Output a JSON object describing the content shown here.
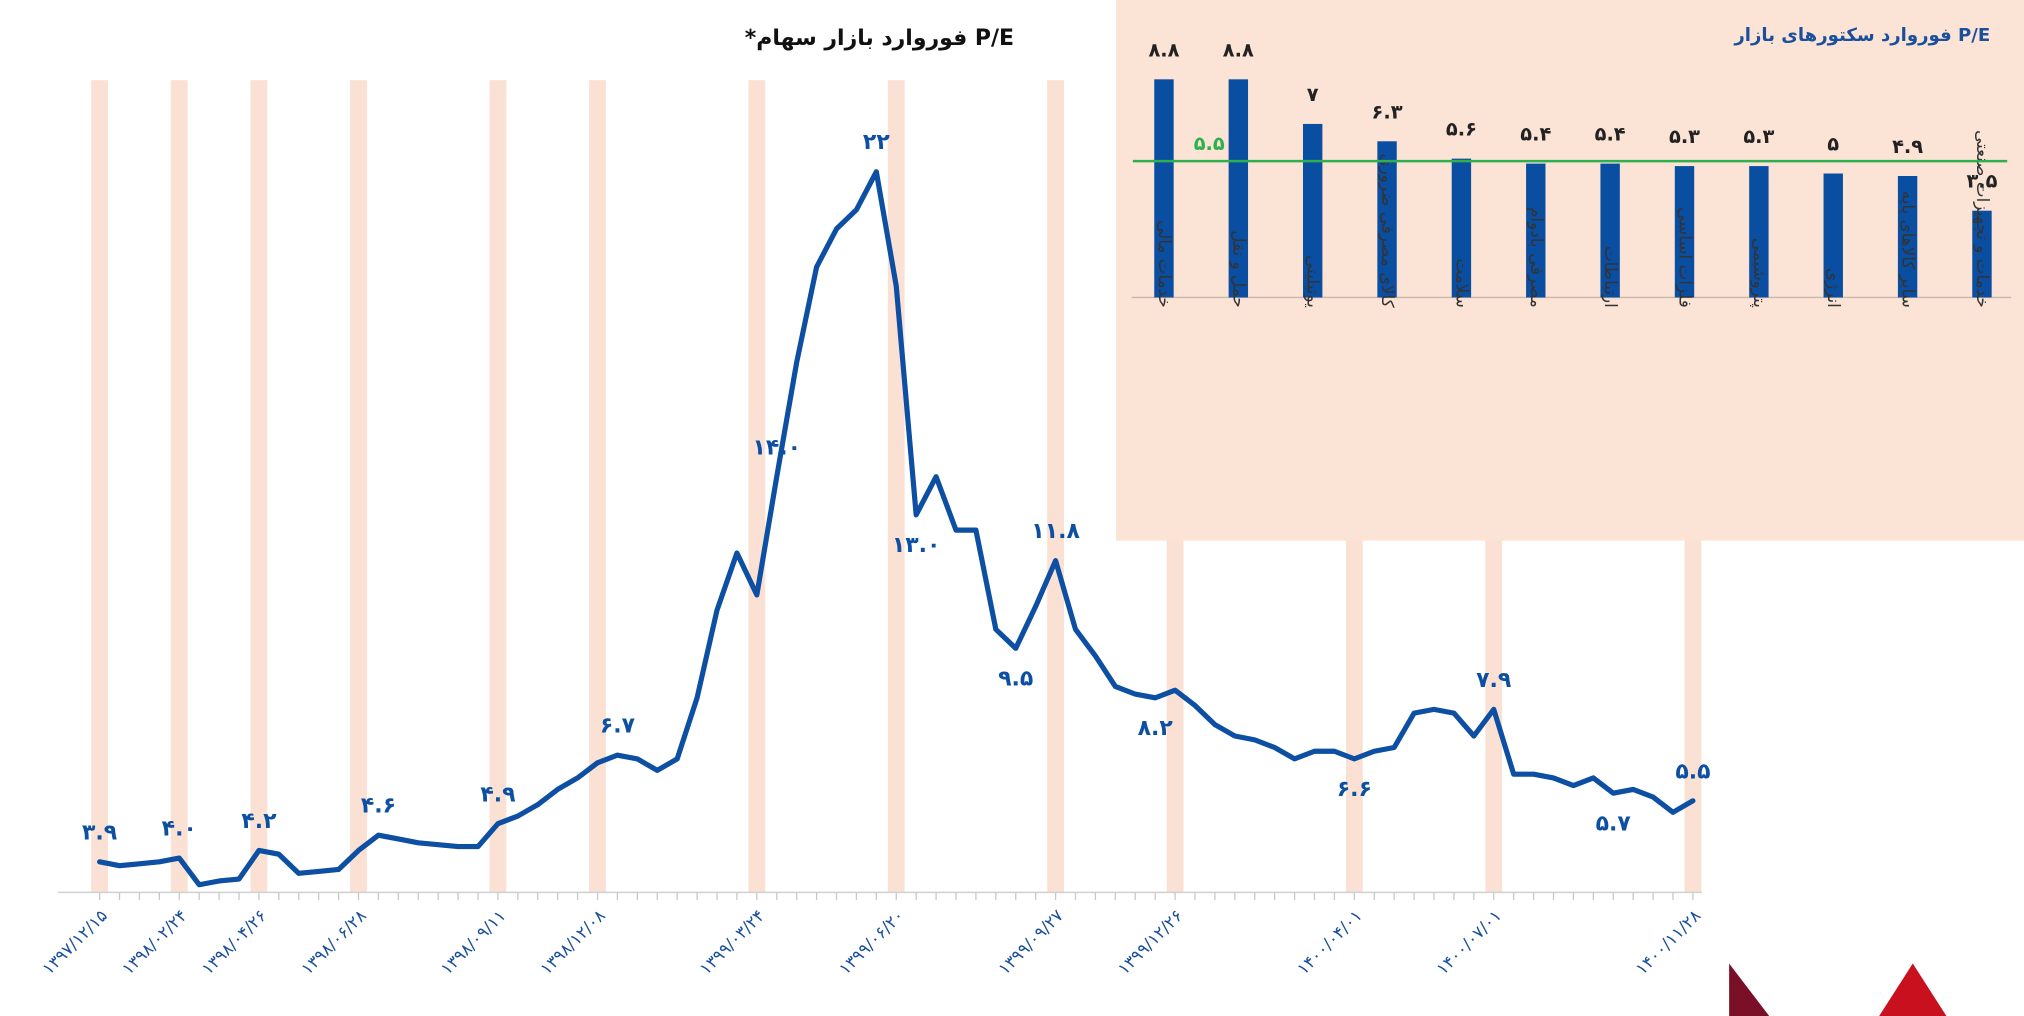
{
  "chart_data": [
    {
      "type": "line",
      "title": "P/E فوروارد بازار سهام*",
      "categories": [
        "۱۳۹۷/۱۲/۱۵",
        null,
        null,
        null,
        "۱۳۹۸/۰۲/۲۴",
        null,
        null,
        null,
        "۱۳۹۸/۰۴/۲۶",
        null,
        null,
        null,
        null,
        "۱۳۹۸/۰۶/۲۸",
        null,
        null,
        null,
        null,
        null,
        null,
        "۱۳۹۸/۰۹/۱۱",
        null,
        null,
        null,
        null,
        "۱۳۹۸/۱۲/۰۸",
        null,
        null,
        null,
        null,
        null,
        null,
        null,
        "۱۳۹۹/۰۳/۲۴",
        null,
        null,
        null,
        null,
        null,
        null,
        "۱۳۹۹/۰۶/۲۰",
        null,
        null,
        null,
        null,
        null,
        null,
        null,
        "۱۳۹۹/۰۹/۲۷",
        null,
        null,
        null,
        null,
        null,
        "۱۳۹۹/۱۲/۲۶",
        null,
        null,
        null,
        null,
        null,
        null,
        null,
        null,
        "۱۴۰۰/۰۴/۰۱",
        null,
        null,
        null,
        null,
        null,
        null,
        "۱۴۰۰/۰۷/۰۱",
        null,
        null,
        null,
        null,
        null,
        null,
        null,
        null,
        null,
        "۱۴۰۰/۱۱/۲۸"
      ],
      "series": [
        {
          "color": "#0d4fa3",
          "values": [
            3.9,
            3.8,
            3.85,
            3.9,
            4.0,
            3.3,
            3.4,
            3.45,
            4.2,
            4.1,
            3.6,
            3.65,
            3.7,
            4.2,
            4.6,
            4.5,
            4.4,
            4.35,
            4.3,
            4.3,
            4.9,
            5.1,
            5.4,
            5.8,
            6.1,
            6.5,
            6.7,
            6.6,
            6.3,
            6.6,
            8.2,
            10.5,
            12.0,
            10.9,
            14.0,
            17.0,
            19.5,
            20.5,
            21.0,
            22,
            19.0,
            13.0,
            14.0,
            12.6,
            12.6,
            10.0,
            9.5,
            10.6,
            11.8,
            10.0,
            9.3,
            8.5,
            8.3,
            8.2,
            8.4,
            8.0,
            7.5,
            7.2,
            7.1,
            6.9,
            6.6,
            6.8,
            6.8,
            6.6,
            6.8,
            6.9,
            7.8,
            7.9,
            7.8,
            7.2,
            7.9,
            6.2,
            6.2,
            6.1,
            5.9,
            6.1,
            5.7,
            5.8,
            5.6,
            5.2,
            5.5
          ],
          "value_labels": [
            "۳.۹",
            null,
            null,
            null,
            "۴.۰",
            null,
            null,
            null,
            "۴.۲",
            null,
            null,
            null,
            null,
            null,
            "۴.۶",
            null,
            null,
            null,
            null,
            null,
            "۴.۹",
            null,
            null,
            null,
            null,
            null,
            "۶.۷",
            null,
            null,
            null,
            null,
            null,
            null,
            null,
            "۱۴.۰",
            null,
            null,
            null,
            null,
            "۲۲",
            null,
            "۱۳.۰",
            null,
            null,
            null,
            null,
            "۹.۵",
            null,
            "۱۱.۸",
            null,
            null,
            null,
            null,
            "۸.۲",
            null,
            null,
            null,
            null,
            null,
            null,
            null,
            null,
            null,
            "۶.۶",
            null,
            null,
            null,
            null,
            null,
            null,
            "۷.۹",
            null,
            null,
            null,
            null,
            null,
            "۵.۷",
            null,
            null,
            null,
            "۵.۵"
          ]
        }
      ],
      "ylim": [
        3.1,
        24.4
      ]
    },
    {
      "type": "bar",
      "title": "P/E فوروارد سکتورهای بازار",
      "categories": [
        "خدمات مالی",
        "حمل و نقل",
        "یوتیلیتی",
        "کالای مصرفی ضروری",
        "سلامت",
        "مصرفی بادوام",
        "ارتباطات",
        "فلزات اساسی",
        "پتروشیمی",
        "انرژی",
        "سایر کالاهای پایه",
        "خدمات و تجهیزات صنعتی"
      ],
      "values": [
        8.8,
        8.8,
        7,
        6.3,
        5.6,
        5.4,
        5.4,
        5.3,
        5.3,
        5,
        4.9,
        3.5
      ],
      "value_labels": [
        "۸.۸",
        "۸.۸",
        "۷",
        "۶.۳",
        "۵.۶",
        "۵.۴",
        "۵.۴",
        "۵.۳",
        "۵.۳",
        "۵",
        "۴.۹",
        "۳.۵"
      ],
      "color": "#0a4ea2",
      "ylim": [
        0,
        9.6
      ],
      "reference_line": {
        "value": 5.5,
        "label": "۵.۵",
        "color": "#2eb04f"
      }
    }
  ]
}
